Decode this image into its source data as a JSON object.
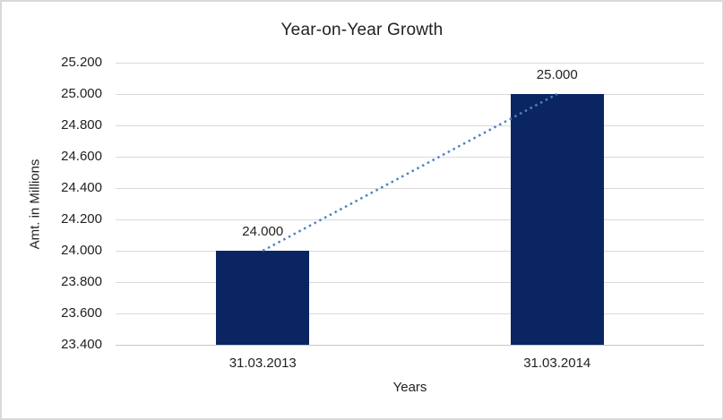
{
  "chart_data": {
    "type": "bar",
    "title": "Year-on-Year Growth",
    "xlabel": "Years",
    "ylabel": "Amt. in Millions",
    "categories": [
      "31.03.2013",
      "31.03.2014"
    ],
    "values": [
      24000,
      25000
    ],
    "data_labels": [
      "24.000",
      "25.000"
    ],
    "ylim": [
      23400,
      25200
    ],
    "y_ticks": [
      {
        "label": "25.200",
        "value": 25200
      },
      {
        "label": "25.000",
        "value": 25000
      },
      {
        "label": "24.800",
        "value": 24800
      },
      {
        "label": "24.600",
        "value": 24600
      },
      {
        "label": "24.400",
        "value": 24400
      },
      {
        "label": "24.200",
        "value": 24200
      },
      {
        "label": "24.000",
        "value": 24000
      },
      {
        "label": "23.800",
        "value": 23800
      },
      {
        "label": "23.600",
        "value": 23600
      },
      {
        "label": "23.400",
        "value": 23400
      }
    ],
    "grid": "horizontal",
    "legend": "none",
    "trendline": {
      "type": "linear",
      "style": "dotted",
      "from_point": 0,
      "to_point": 1
    },
    "colors": {
      "bar": "#0B2563",
      "trendline": "#4E82C4",
      "gridline": "#D9D9D9",
      "axis_line": "#C9C9C9",
      "text": "#222222",
      "background": "#FFFFFF",
      "border": "#D9D9D9"
    }
  }
}
